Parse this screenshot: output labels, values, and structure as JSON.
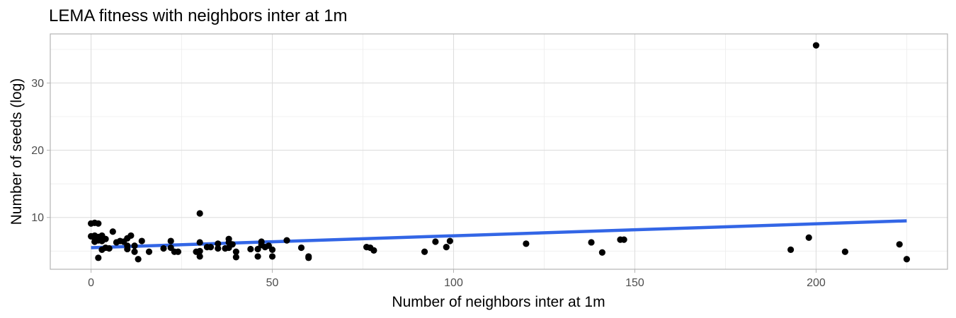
{
  "chart_data": {
    "type": "scatter",
    "title": "LEMA fitness with neighbors inter at 1m",
    "xlabel": "Number of neighbors inter at 1m",
    "ylabel": "Number of seeds (log)",
    "xlim": [
      -11.25,
      236.25
    ],
    "ylim": [
      2.3,
      37.3
    ],
    "xticks": [
      0,
      50,
      100,
      150,
      200
    ],
    "yticks": [
      10,
      20,
      30
    ],
    "grid": true,
    "legend": "none",
    "colors": {
      "points": "#000000",
      "trend": "#3366e6"
    },
    "points": [
      {
        "x": 0,
        "y": 9.1
      },
      {
        "x": 1,
        "y": 9.2
      },
      {
        "x": 2,
        "y": 9.1
      },
      {
        "x": 0,
        "y": 7.2
      },
      {
        "x": 1,
        "y": 7.3
      },
      {
        "x": 2,
        "y": 7.1
      },
      {
        "x": 3,
        "y": 7.3
      },
      {
        "x": 1,
        "y": 6.9
      },
      {
        "x": 2,
        "y": 7.0
      },
      {
        "x": 1,
        "y": 6.4
      },
      {
        "x": 2,
        "y": 6.6
      },
      {
        "x": 3,
        "y": 6.5
      },
      {
        "x": 4,
        "y": 6.8
      },
      {
        "x": 3,
        "y": 5.2
      },
      {
        "x": 4,
        "y": 5.5
      },
      {
        "x": 5,
        "y": 5.4
      },
      {
        "x": 2,
        "y": 4.0
      },
      {
        "x": 6,
        "y": 7.9
      },
      {
        "x": 7,
        "y": 6.3
      },
      {
        "x": 8,
        "y": 6.5
      },
      {
        "x": 9,
        "y": 6.4
      },
      {
        "x": 10,
        "y": 6.9
      },
      {
        "x": 11,
        "y": 7.3
      },
      {
        "x": 10,
        "y": 5.8
      },
      {
        "x": 10,
        "y": 5.3
      },
      {
        "x": 12,
        "y": 5.8
      },
      {
        "x": 12,
        "y": 4.9
      },
      {
        "x": 13,
        "y": 3.8
      },
      {
        "x": 14,
        "y": 6.5
      },
      {
        "x": 16,
        "y": 4.9
      },
      {
        "x": 20,
        "y": 5.4
      },
      {
        "x": 22,
        "y": 6.5
      },
      {
        "x": 22,
        "y": 5.5
      },
      {
        "x": 23,
        "y": 4.9
      },
      {
        "x": 24,
        "y": 4.9
      },
      {
        "x": 29,
        "y": 4.9
      },
      {
        "x": 30,
        "y": 10.6
      },
      {
        "x": 30,
        "y": 6.3
      },
      {
        "x": 30,
        "y": 5.0
      },
      {
        "x": 30,
        "y": 4.2
      },
      {
        "x": 32,
        "y": 5.6
      },
      {
        "x": 33,
        "y": 5.6
      },
      {
        "x": 35,
        "y": 6.1
      },
      {
        "x": 35,
        "y": 5.4
      },
      {
        "x": 37,
        "y": 5.4
      },
      {
        "x": 38,
        "y": 6.8
      },
      {
        "x": 38,
        "y": 6.3
      },
      {
        "x": 38,
        "y": 5.5
      },
      {
        "x": 39,
        "y": 6.0
      },
      {
        "x": 40,
        "y": 4.9
      },
      {
        "x": 40,
        "y": 4.1
      },
      {
        "x": 44,
        "y": 5.3
      },
      {
        "x": 46,
        "y": 5.3
      },
      {
        "x": 46,
        "y": 4.2
      },
      {
        "x": 47,
        "y": 6.4
      },
      {
        "x": 47,
        "y": 5.9
      },
      {
        "x": 48,
        "y": 5.6
      },
      {
        "x": 49,
        "y": 5.8
      },
      {
        "x": 50,
        "y": 5.2
      },
      {
        "x": 50,
        "y": 4.2
      },
      {
        "x": 54,
        "y": 6.6
      },
      {
        "x": 58,
        "y": 5.5
      },
      {
        "x": 60,
        "y": 4.2
      },
      {
        "x": 60,
        "y": 4.0
      },
      {
        "x": 76,
        "y": 5.6
      },
      {
        "x": 77,
        "y": 5.5
      },
      {
        "x": 78,
        "y": 5.1
      },
      {
        "x": 92,
        "y": 4.9
      },
      {
        "x": 95,
        "y": 6.4
      },
      {
        "x": 98,
        "y": 5.6
      },
      {
        "x": 99,
        "y": 6.5
      },
      {
        "x": 120,
        "y": 6.1
      },
      {
        "x": 138,
        "y": 6.3
      },
      {
        "x": 141,
        "y": 4.8
      },
      {
        "x": 146,
        "y": 6.7
      },
      {
        "x": 147,
        "y": 6.7
      },
      {
        "x": 193,
        "y": 5.2
      },
      {
        "x": 198,
        "y": 7.0
      },
      {
        "x": 200,
        "y": 35.6
      },
      {
        "x": 208,
        "y": 4.9
      },
      {
        "x": 223,
        "y": 6.0
      },
      {
        "x": 225,
        "y": 3.8
      }
    ],
    "trend_line": {
      "x": [
        0,
        225
      ],
      "y": [
        5.5,
        9.5
      ]
    }
  }
}
